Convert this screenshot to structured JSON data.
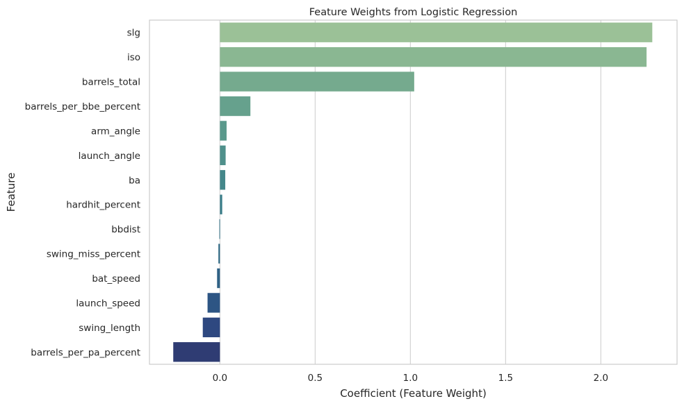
{
  "chart_data": {
    "type": "bar",
    "orientation": "horizontal",
    "title": "Feature Weights from Logistic Regression",
    "xlabel": "Coefficient (Feature Weight)",
    "ylabel": "Feature",
    "xlim": [
      -0.37,
      2.4
    ],
    "xticks": [
      0.0,
      0.5,
      1.0,
      1.5,
      2.0
    ],
    "xtick_labels": [
      "0.0",
      "0.5",
      "1.0",
      "1.5",
      "2.0"
    ],
    "grid": "vertical",
    "palette": "crest",
    "categories": [
      "slg",
      "iso",
      "barrels_total",
      "barrels_per_bbe_percent",
      "arm_angle",
      "launch_angle",
      "ba",
      "hardhit_percent",
      "bbdist",
      "swing_miss_percent",
      "bat_speed",
      "launch_speed",
      "swing_length",
      "barrels_per_pa_percent"
    ],
    "values": [
      2.27,
      2.24,
      1.02,
      0.16,
      0.035,
      0.03,
      0.028,
      0.012,
      -0.003,
      -0.008,
      -0.015,
      -0.065,
      -0.09,
      -0.245
    ],
    "colors": [
      "#9bc197",
      "#8ab792",
      "#75aa8e",
      "#66a18d",
      "#5a998c",
      "#4f908b",
      "#44878a",
      "#3b7e89",
      "#357487",
      "#316b86",
      "#2f6185",
      "#2d5584",
      "#2e4880",
      "#2f3c73"
    ]
  }
}
